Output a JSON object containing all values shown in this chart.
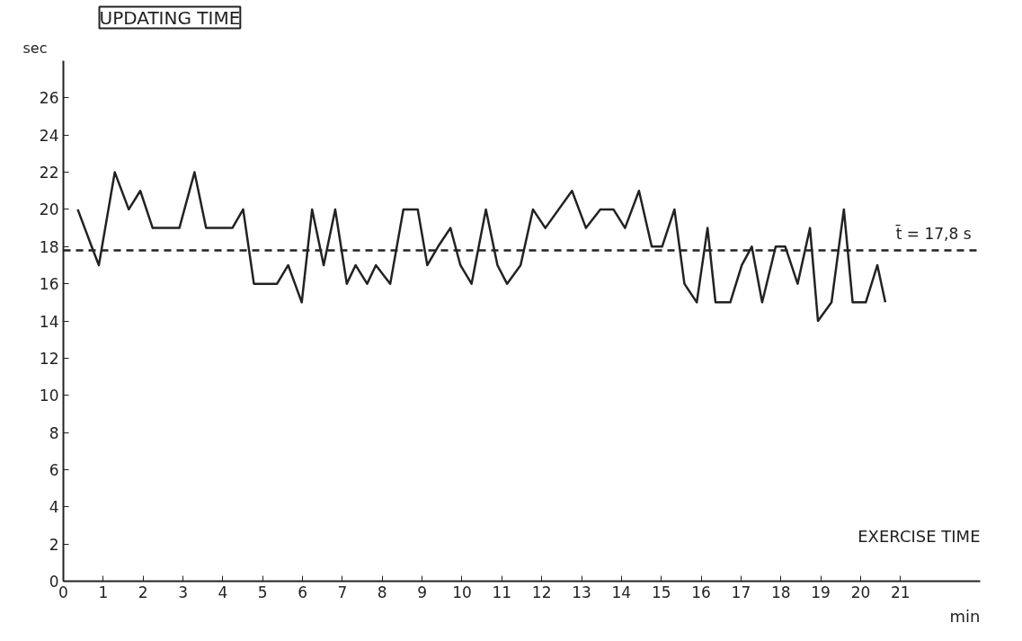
{
  "chart_data": {
    "type": "line",
    "title": "UPDATING TIME",
    "xlabel": "min",
    "ylabel": "sec",
    "annotations": [
      "EXERCISE TIME"
    ],
    "x": [
      0.36,
      0.71,
      0.89,
      1.29,
      1.64,
      1.93,
      2.24,
      2.91,
      3.29,
      3.58,
      4.24,
      4.51,
      4.78,
      5.36,
      5.64,
      5.98,
      6.24,
      6.53,
      6.82,
      7.11,
      7.33,
      7.62,
      7.84,
      8.2,
      8.53,
      8.89,
      9.13,
      9.4,
      9.71,
      9.96,
      10.24,
      10.6,
      10.89,
      11.13,
      11.47,
      11.78,
      12.09,
      12.76,
      13.11,
      13.47,
      13.8,
      14.09,
      14.44,
      14.76,
      15.02,
      15.33,
      15.58,
      15.89,
      16.16,
      16.36,
      16.73,
      17.02,
      17.27,
      17.53,
      17.87,
      18.11,
      18.42,
      18.73,
      18.93,
      19.27,
      19.58,
      19.8,
      20.13,
      20.42,
      20.62
    ],
    "series": [
      {
        "color": "#222222",
        "values": [
          20,
          18,
          17,
          22,
          20,
          21,
          19,
          19,
          22,
          19,
          19,
          20,
          16,
          16,
          17,
          15,
          20,
          17,
          20,
          16,
          17,
          16,
          17,
          16,
          20,
          20,
          17,
          18,
          19,
          17,
          16,
          20,
          17,
          16,
          17,
          20,
          19,
          21,
          19,
          20,
          20,
          19,
          21,
          18,
          18,
          20,
          16,
          15,
          19,
          15,
          15,
          17,
          18,
          15,
          18,
          18,
          16,
          19,
          14,
          15,
          20,
          15,
          15,
          17,
          15
        ]
      }
    ],
    "xlim": [
      0,
      23
    ],
    "xticks": [
      0,
      1,
      2,
      3,
      4,
      5,
      6,
      7,
      8,
      9,
      10,
      11,
      12,
      13,
      14,
      15,
      16,
      17,
      18,
      19,
      20,
      21
    ],
    "ylim": [
      0,
      28
    ],
    "yticks": [
      0,
      2,
      4,
      6,
      8,
      10,
      12,
      14,
      16,
      18,
      20,
      22,
      24,
      26
    ],
    "ref_lines": [
      {
        "axis": "y",
        "value": 17.8,
        "label": "t̄ = 17,8 s",
        "color": "#222222",
        "line_style": "dashed"
      }
    ],
    "grid": false,
    "marker": "none",
    "line_style": "solid"
  }
}
